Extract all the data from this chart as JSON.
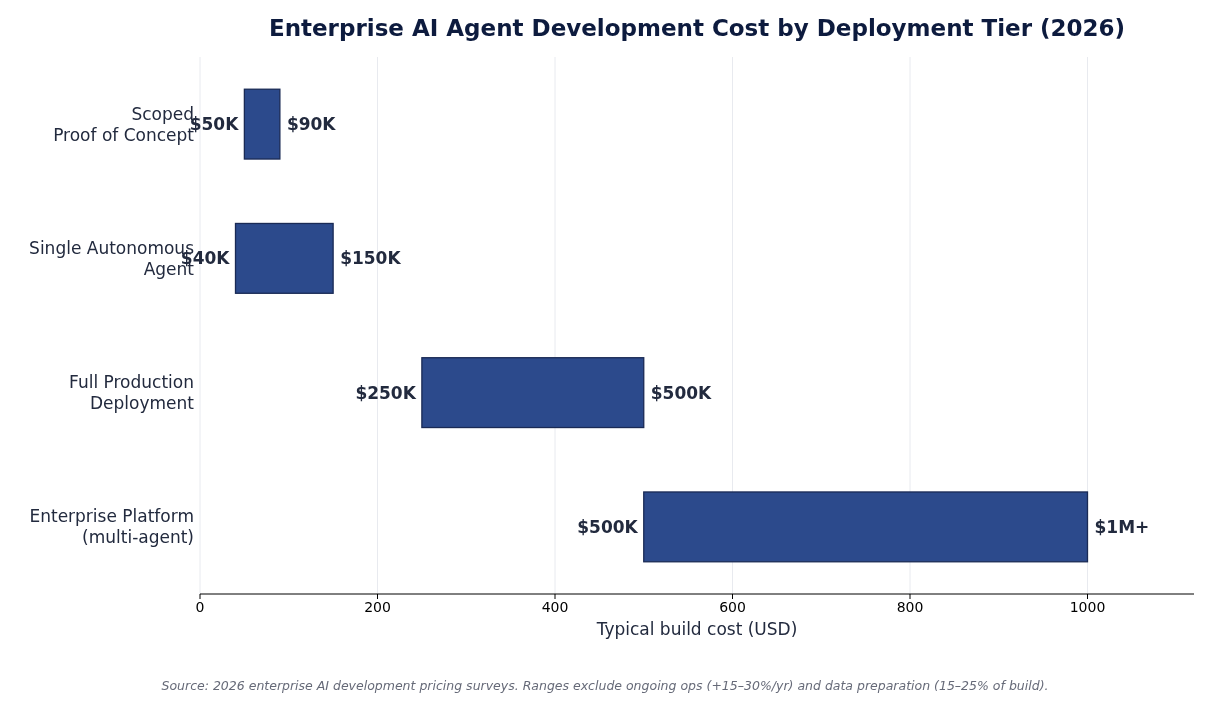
{
  "chart_data": {
    "type": "bar",
    "orientation": "horizontal",
    "title": "Enterprise AI Agent Development Cost by Deployment Tier (2026)",
    "xlabel": "Typical build cost (USD)",
    "categories": [
      "Scoped\nProof of Concept",
      "Single Autonomous\nAgent",
      "Full Production\nDeployment",
      "Enterprise Platform\n(multi-agent)"
    ],
    "base": [
      50,
      40,
      250,
      500
    ],
    "values": [
      40,
      110,
      250,
      500
    ],
    "color": "#2c4a8c",
    "xlim": [
      0,
      1120
    ],
    "xticks": [
      0,
      200,
      400,
      600,
      800,
      1000
    ],
    "grid": "x",
    "annotations": [
      {
        "text": "$50K",
        "x": 50,
        "y": "Scoped\nProof of Concept"
      },
      {
        "text": "$90K",
        "x": 90,
        "y": "Scoped\nProof of Concept"
      },
      {
        "text": "$40K",
        "x": 40,
        "y": "Single Autonomous\nAgent"
      },
      {
        "text": "$150K",
        "x": 150,
        "y": "Single Autonomous\nAgent"
      },
      {
        "text": "$250K",
        "x": 250,
        "y": "Full Production\nDeployment"
      },
      {
        "text": "$500K",
        "x": 500,
        "y": "Full Production\nDeployment"
      },
      {
        "text": "$500K",
        "x": 500,
        "y": "Enterprise Platform\n(multi-agent)"
      },
      {
        "text": "$1M+",
        "x": 1000,
        "y": "Enterprise Platform\n(multi-agent)"
      },
      "Source: 2026 enterprise AI development pricing surveys.  Ranges exclude ongoing ops (+15–30%/yr) and data preparation (15–25% of build)."
    ]
  }
}
